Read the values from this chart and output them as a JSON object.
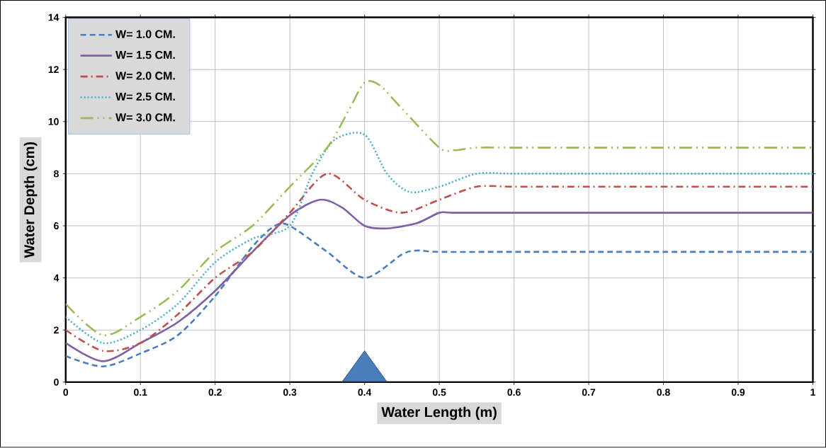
{
  "chart_data": {
    "type": "line",
    "xlabel": "Water Length (m)",
    "ylabel": "Water Depth (cm)",
    "xlim": [
      0,
      1
    ],
    "ylim": [
      0,
      14
    ],
    "xticks": [
      0,
      0.1,
      0.2,
      0.3,
      0.4,
      0.5,
      0.6,
      0.7,
      0.8,
      0.9,
      1
    ],
    "yticks": [
      0,
      2,
      4,
      6,
      8,
      10,
      12,
      14
    ],
    "grid": true,
    "legend": "top left",
    "marker": "none",
    "x": [
      0,
      0.05,
      0.1,
      0.15,
      0.2,
      0.25,
      0.3,
      0.35,
      0.4,
      0.45,
      0.5,
      0.55,
      0.6,
      0.7,
      0.8,
      0.9,
      1
    ],
    "series": [
      {
        "name": "W= 1.0 CM.",
        "color": "#4a7ebb",
        "line_style": "dashed",
        "x": [
          0,
          0.05,
          0.1,
          0.15,
          0.2,
          0.25,
          0.28,
          0.3,
          0.35,
          0.4,
          0.45,
          0.47,
          0.5,
          0.6,
          0.7,
          0.8,
          0.9,
          1
        ],
        "values": [
          1.0,
          0.6,
          1.1,
          1.8,
          3.3,
          5.2,
          6.0,
          6.0,
          5.0,
          4.0,
          4.9,
          5.05,
          5.0,
          5.0,
          5.0,
          5.0,
          5.0,
          5.0
        ]
      },
      {
        "name": "W= 1.5 CM.",
        "color": "#7f5fa5",
        "line_style": "solid",
        "x": [
          0,
          0.05,
          0.1,
          0.15,
          0.2,
          0.25,
          0.3,
          0.34,
          0.37,
          0.4,
          0.43,
          0.47,
          0.5,
          0.52,
          0.6,
          0.7,
          0.8,
          0.9,
          1
        ],
        "values": [
          1.5,
          0.8,
          1.5,
          2.3,
          3.5,
          5.0,
          6.4,
          7.0,
          6.7,
          6.0,
          5.9,
          6.1,
          6.5,
          6.5,
          6.5,
          6.5,
          6.5,
          6.5,
          6.5
        ]
      },
      {
        "name": "W= 2.0 CM.",
        "color": "#c0504d",
        "line_style": "dashdot",
        "values": [
          2.0,
          1.2,
          1.5,
          2.6,
          4.0,
          5.0,
          6.5,
          8.0,
          7.0,
          6.5,
          7.0,
          7.5,
          7.5,
          7.5,
          7.5,
          7.5,
          7.5
        ]
      },
      {
        "name": "W= 2.5 CM.",
        "color": "#4bacc6",
        "line_style": "dotted",
        "x": [
          0,
          0.05,
          0.1,
          0.15,
          0.2,
          0.25,
          0.3,
          0.33,
          0.36,
          0.4,
          0.43,
          0.46,
          0.5,
          0.55,
          0.6,
          0.7,
          0.8,
          0.9,
          1
        ],
        "values": [
          2.5,
          1.5,
          2.0,
          3.0,
          4.6,
          5.5,
          6.0,
          8.0,
          9.3,
          9.5,
          8.0,
          7.3,
          7.5,
          8.0,
          8.0,
          8.0,
          8.0,
          8.0,
          8.0
        ]
      },
      {
        "name": "W= 3.0 CM.",
        "color": "#9bbb59",
        "line_style": "dashdotdot",
        "x": [
          0,
          0.05,
          0.1,
          0.15,
          0.2,
          0.25,
          0.3,
          0.35,
          0.38,
          0.4,
          0.42,
          0.45,
          0.5,
          0.52,
          0.55,
          0.6,
          0.7,
          0.8,
          0.9,
          1
        ],
        "values": [
          3.0,
          1.8,
          2.5,
          3.5,
          5.0,
          6.0,
          7.5,
          9.0,
          10.5,
          11.5,
          11.4,
          10.5,
          9.0,
          8.9,
          9.0,
          9.0,
          9.0,
          9.0,
          9.0,
          9.0
        ]
      }
    ]
  }
}
